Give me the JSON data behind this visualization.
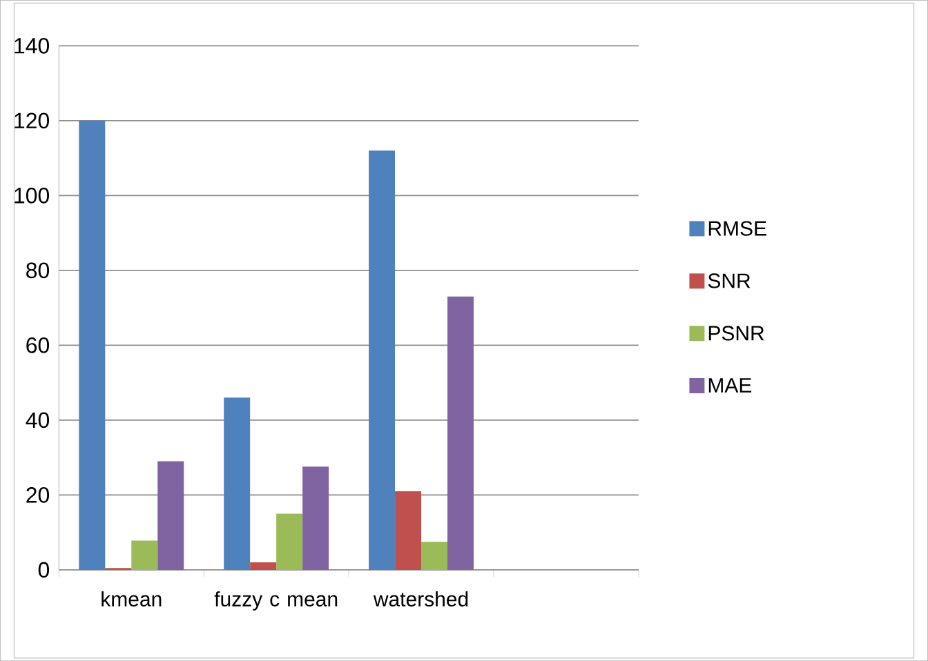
{
  "chart_data": {
    "type": "bar",
    "categories": [
      "kmean",
      "fuzzy c mean",
      "watershed",
      null
    ],
    "series": [
      {
        "name": "RMSE",
        "color": "#4f81bd",
        "values": [
          120,
          46,
          112,
          null
        ]
      },
      {
        "name": "SNR",
        "color": "#c0504d",
        "values": [
          0.5,
          2,
          21,
          null
        ]
      },
      {
        "name": "PSNR",
        "color": "#9bbb59",
        "values": [
          7.8,
          15,
          7.5,
          null
        ]
      },
      {
        "name": "MAE",
        "color": "#8064a2",
        "values": [
          29,
          27.6,
          73,
          null
        ]
      }
    ],
    "ylim": [
      0,
      140
    ],
    "yticks": [
      0,
      20,
      40,
      60,
      80,
      100,
      120,
      140
    ],
    "grid": "y",
    "legend": "right"
  }
}
